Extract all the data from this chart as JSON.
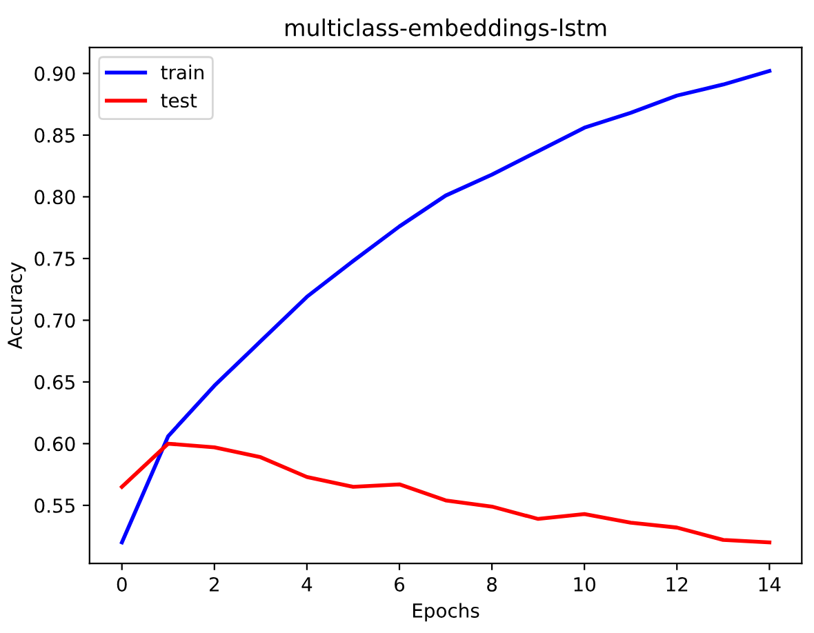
{
  "chart_data": {
    "type": "line",
    "title": "multiclass-embeddings-lstm",
    "xlabel": "Epochs",
    "ylabel": "Accuracy",
    "x": [
      0,
      1,
      2,
      3,
      4,
      5,
      6,
      7,
      8,
      9,
      10,
      11,
      12,
      13,
      14
    ],
    "series": [
      {
        "name": "train",
        "color": "#0000ff",
        "values": [
          0.52,
          0.606,
          0.647,
          0.683,
          0.719,
          0.748,
          0.776,
          0.801,
          0.818,
          0.837,
          0.856,
          0.868,
          0.882,
          0.891,
          0.902
        ]
      },
      {
        "name": "test",
        "color": "#ff0000",
        "values": [
          0.565,
          0.6,
          0.597,
          0.589,
          0.573,
          0.565,
          0.567,
          0.554,
          0.549,
          0.539,
          0.543,
          0.536,
          0.532,
          0.522,
          0.52
        ]
      }
    ],
    "xlim": [
      -0.7,
      14.7
    ],
    "ylim": [
      0.503,
      0.921
    ],
    "xticks": [
      0,
      2,
      4,
      6,
      8,
      10,
      12,
      14
    ],
    "yticks": [
      {
        "value": 0.55,
        "label": "0.55"
      },
      {
        "value": 0.6,
        "label": "0.60"
      },
      {
        "value": 0.65,
        "label": "0.65"
      },
      {
        "value": 0.7,
        "label": "0.70"
      },
      {
        "value": 0.75,
        "label": "0.75"
      },
      {
        "value": 0.8,
        "label": "0.80"
      },
      {
        "value": 0.85,
        "label": "0.85"
      },
      {
        "value": 0.9,
        "label": "0.90"
      }
    ],
    "legend": "upper left",
    "grid": false
  }
}
